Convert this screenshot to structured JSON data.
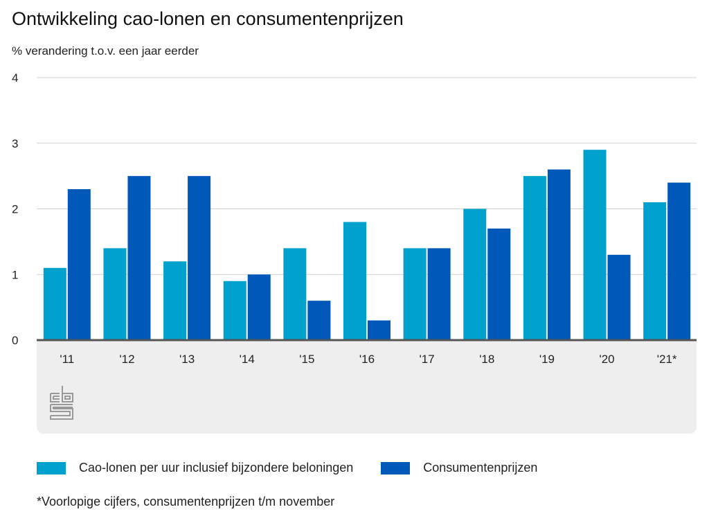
{
  "header": {
    "title": "Ontwikkeling cao-lonen en consumentenprijzen",
    "subtitle": "% verandering t.o.v. een jaar eerder"
  },
  "colors": {
    "cao": "#00a1cd",
    "cpi": "#0058b8",
    "grid": "#d0d0d0",
    "axis": "#555555",
    "panel": "#eeeeee",
    "logo": "#999999"
  },
  "chart_data": {
    "type": "bar",
    "title": "Ontwikkeling cao-lonen en consumentenprijzen",
    "subtitle": "% verandering t.o.v. een jaar eerder",
    "xlabel": "",
    "ylabel": "% verandering t.o.v. een jaar eerder",
    "categories": [
      "'11",
      "'12",
      "'13",
      "'14",
      "'15",
      "'16",
      "'17",
      "'18",
      "'19",
      "'20",
      "'21*"
    ],
    "series": [
      {
        "name": "Cao-lonen per uur inclusief bijzondere beloningen",
        "color": "#00a1cd",
        "values": [
          1.1,
          1.4,
          1.2,
          0.9,
          1.4,
          1.8,
          1.4,
          2.0,
          2.5,
          2.9,
          2.1
        ]
      },
      {
        "name": "Consumentenprijzen",
        "color": "#0058b8",
        "values": [
          2.3,
          2.5,
          2.5,
          1.0,
          0.6,
          0.3,
          1.4,
          1.7,
          2.6,
          1.3,
          2.4
        ]
      }
    ],
    "ylim": [
      0,
      4
    ],
    "yticks": [
      "0",
      "1",
      "2",
      "3",
      "4"
    ],
    "grid": true,
    "legend": "bottom-left",
    "footnote": "*Voorlopige cijfers, consumentenprijzen t/m november"
  },
  "legend": {
    "items": [
      {
        "label": "Cao-lonen per uur inclusief bijzondere beloningen"
      },
      {
        "label": "Consumentenprijzen"
      }
    ]
  },
  "footnote": "*Voorlopige cijfers, consumentenprijzen t/m november",
  "logo": {
    "icon": "cbs-logo-icon"
  }
}
